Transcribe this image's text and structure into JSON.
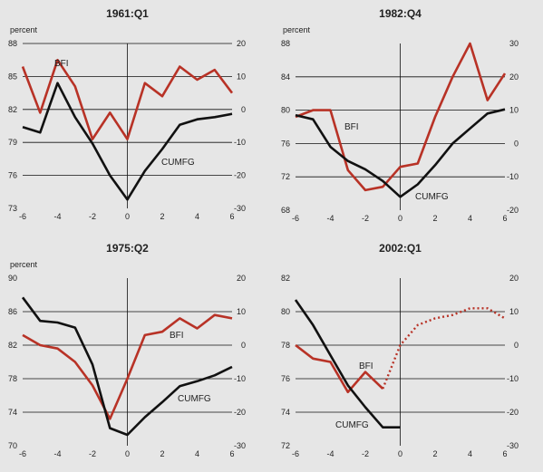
{
  "chart_data": [
    {
      "type": "line",
      "title": "1961:Q1",
      "left_axis_label": "percent",
      "x": [
        -6,
        -5,
        -4,
        -3,
        -2,
        -1,
        0,
        1,
        2,
        3,
        4,
        5,
        6
      ],
      "xlim": [
        -6,
        6
      ],
      "xticks": [
        -6,
        -4,
        -2,
        0,
        2,
        4,
        6
      ],
      "left_ylim": [
        73,
        88
      ],
      "left_ticks": [
        73,
        76,
        79,
        82,
        85,
        88
      ],
      "right_ylim": [
        -30,
        20
      ],
      "right_ticks": [
        -30,
        -20,
        -10,
        0,
        10,
        20
      ],
      "gridlines": [
        -20,
        -10,
        0,
        10,
        20
      ],
      "series": [
        {
          "name": "BFI",
          "axis": "right",
          "color": "#b83226",
          "values": [
            13,
            -1,
            15,
            7,
            -9,
            -1,
            -9,
            8,
            4,
            13,
            9,
            12,
            5
          ]
        },
        {
          "name": "CUMFG",
          "axis": "left",
          "color": "#111111",
          "values": [
            80.4,
            79.9,
            84.4,
            81.3,
            78.9,
            76.0,
            73.8,
            76.4,
            78.4,
            80.6,
            81.1,
            81.3,
            81.6
          ]
        }
      ]
    },
    {
      "type": "line",
      "title": "1982:Q4",
      "left_axis_label": "percent",
      "x": [
        -6,
        -5,
        -4,
        -3,
        -2,
        -1,
        0,
        1,
        2,
        3,
        4,
        5,
        6
      ],
      "xlim": [
        -6,
        6
      ],
      "xticks": [
        -6,
        -4,
        -2,
        0,
        2,
        4,
        6
      ],
      "left_ylim": [
        68,
        88
      ],
      "left_ticks": [
        68,
        72,
        76,
        80,
        84,
        88
      ],
      "right_ylim": [
        -20,
        30
      ],
      "right_ticks": [
        -20,
        -10,
        0,
        10,
        20,
        30
      ],
      "gridlines": [
        -10,
        0,
        10,
        20
      ],
      "series": [
        {
          "name": "BFI",
          "axis": "right",
          "color": "#b83226",
          "values": [
            8,
            10,
            10,
            -8,
            -14,
            -13,
            -7,
            -6,
            8,
            20,
            30,
            13,
            21
          ]
        },
        {
          "name": "CUMFG",
          "axis": "left",
          "color": "#111111",
          "values": [
            79.4,
            78.9,
            75.6,
            73.9,
            72.9,
            71.5,
            69.6,
            71.1,
            73.4,
            76.0,
            77.8,
            79.6,
            80.1
          ]
        }
      ]
    },
    {
      "type": "line",
      "title": "1975:Q2",
      "left_axis_label": "percent",
      "x": [
        -6,
        -5,
        -4,
        -3,
        -2,
        -1,
        0,
        1,
        2,
        3,
        4,
        5,
        6
      ],
      "xlim": [
        -6,
        6
      ],
      "xticks": [
        -6,
        -4,
        -2,
        0,
        2,
        4,
        6
      ],
      "left_ylim": [
        70,
        90
      ],
      "left_ticks": [
        70,
        74,
        78,
        82,
        86,
        90
      ],
      "right_ylim": [
        -30,
        20
      ],
      "right_ticks": [
        -30,
        -20,
        -10,
        0,
        10,
        20
      ],
      "gridlines": [
        -20,
        -10,
        0,
        10
      ],
      "series": [
        {
          "name": "BFI",
          "axis": "right",
          "color": "#b83226",
          "values": [
            3,
            0,
            -1,
            -5,
            -12,
            -22,
            -10,
            3,
            4,
            8,
            5,
            9,
            8
          ]
        },
        {
          "name": "CUMFG",
          "axis": "left",
          "color": "#111111",
          "values": [
            87.7,
            84.9,
            84.7,
            84.1,
            79.7,
            72.1,
            71.3,
            73.4,
            75.2,
            77.1,
            77.7,
            78.4,
            79.4
          ]
        }
      ]
    },
    {
      "type": "line",
      "title": "2002:Q1",
      "left_axis_label": "",
      "x": [
        -6,
        -5,
        -4,
        -3,
        -2,
        -1,
        0,
        1,
        2,
        3,
        4,
        5,
        6
      ],
      "xlim": [
        -6,
        6
      ],
      "xticks": [
        -6,
        -4,
        -2,
        0,
        2,
        4,
        6
      ],
      "left_ylim": [
        72,
        82
      ],
      "left_ticks": [
        72,
        74,
        76,
        78,
        80,
        82
      ],
      "right_ylim": [
        -30,
        20
      ],
      "right_ticks": [
        -30,
        -20,
        -10,
        0,
        10,
        20
      ],
      "gridlines": [
        -20,
        -10,
        0,
        10
      ],
      "series": [
        {
          "name": "BFI",
          "axis": "right",
          "color": "#b83226",
          "values": [
            0,
            -4,
            -5,
            -14,
            -8,
            -13,
            null,
            null,
            null,
            null,
            null,
            null,
            null
          ]
        },
        {
          "name": "",
          "axis": "right",
          "color": "#b83226",
          "style": "dotted",
          "values": [
            null,
            null,
            null,
            null,
            null,
            -13,
            0,
            6,
            8,
            9,
            11,
            11,
            8
          ]
        },
        {
          "name": "CUMFG",
          "axis": "left",
          "color": "#111111",
          "values": [
            80.7,
            79.2,
            77.4,
            75.6,
            74.3,
            73.1,
            73.1,
            null,
            null,
            null,
            null,
            null,
            null
          ]
        }
      ]
    }
  ]
}
